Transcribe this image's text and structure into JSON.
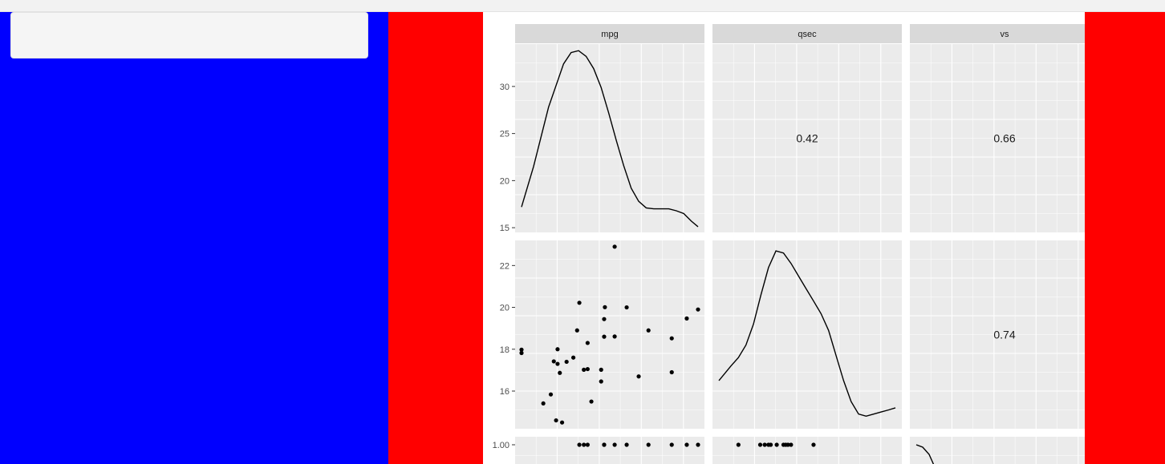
{
  "chart_data": {
    "type": "scatter",
    "kind": "pairs-matrix",
    "variables": [
      "mpg",
      "qsec",
      "vs"
    ],
    "panel_background": "#ebebeb",
    "strip_background": "#d9d9d9",
    "mark_color": "#000000",
    "grid": true,
    "y_ranges": {
      "mpg": [
        14.5,
        34.5
      ],
      "qsec": [
        14.2,
        23.2
      ]
    },
    "x_range": [
      10.4,
      33.9
    ],
    "y_ticks": {
      "mpg": [
        15,
        20,
        25,
        30
      ],
      "qsec": [
        16,
        18,
        20,
        22
      ],
      "vs": [
        1.0
      ]
    },
    "tick_labels": {
      "mpg": [
        "15",
        "20",
        "25",
        "30"
      ],
      "qsec": [
        "16",
        "18",
        "20",
        "22"
      ],
      "vs": [
        "1.00"
      ]
    },
    "correlations": [
      {
        "row": "mpg",
        "col": "qsec",
        "label": "0.42"
      },
      {
        "row": "mpg",
        "col": "vs",
        "label": "0.66"
      },
      {
        "row": "qsec",
        "col": "vs",
        "label": "0.74"
      }
    ],
    "density_mpg": {
      "x": [
        10.4,
        12,
        14,
        16,
        17,
        18,
        19,
        20,
        21,
        22,
        23,
        24,
        25,
        26,
        27,
        28,
        29,
        30,
        31,
        32,
        33,
        33.9
      ],
      "y": [
        17.2,
        21.5,
        27.8,
        32.4,
        33.6,
        33.8,
        33.2,
        31.9,
        29.9,
        27.2,
        24.3,
        21.6,
        19.2,
        17.8,
        17.1,
        17.0,
        17.0,
        17.0,
        16.8,
        16.5,
        15.7,
        15.1
      ]
    },
    "density_qsec": {
      "x": [
        10.4,
        12,
        13,
        14,
        15,
        16,
        17,
        18,
        19,
        20,
        21,
        22,
        23,
        24,
        25,
        26,
        27,
        28,
        29,
        30,
        31,
        32,
        33,
        33.9
      ],
      "y": [
        16.5,
        17.2,
        17.6,
        18.2,
        19.2,
        20.6,
        21.9,
        22.7,
        22.6,
        22.1,
        21.5,
        20.9,
        20.3,
        19.7,
        18.9,
        17.7,
        16.5,
        15.5,
        14.9,
        14.8,
        14.9,
        15.0,
        15.1,
        15.2
      ]
    },
    "scatter_mpg_qsec": [
      {
        "x": 21.0,
        "y": 16.46
      },
      {
        "x": 21.0,
        "y": 17.02
      },
      {
        "x": 22.8,
        "y": 18.61
      },
      {
        "x": 21.4,
        "y": 19.44
      },
      {
        "x": 18.7,
        "y": 17.02
      },
      {
        "x": 18.1,
        "y": 20.22
      },
      {
        "x": 14.3,
        "y": 15.84
      },
      {
        "x": 24.4,
        "y": 20.0
      },
      {
        "x": 22.8,
        "y": 22.9
      },
      {
        "x": 19.2,
        "y": 18.3
      },
      {
        "x": 17.8,
        "y": 18.9
      },
      {
        "x": 16.4,
        "y": 17.4
      },
      {
        "x": 17.3,
        "y": 17.6
      },
      {
        "x": 15.2,
        "y": 18.0
      },
      {
        "x": 10.4,
        "y": 17.98
      },
      {
        "x": 10.4,
        "y": 17.82
      },
      {
        "x": 14.7,
        "y": 17.42
      },
      {
        "x": 32.4,
        "y": 19.47
      },
      {
        "x": 30.4,
        "y": 18.52
      },
      {
        "x": 33.9,
        "y": 19.9
      },
      {
        "x": 21.5,
        "y": 20.01
      },
      {
        "x": 15.5,
        "y": 16.87
      },
      {
        "x": 15.2,
        "y": 17.3
      },
      {
        "x": 13.3,
        "y": 15.41
      },
      {
        "x": 19.2,
        "y": 17.05
      },
      {
        "x": 27.3,
        "y": 18.9
      },
      {
        "x": 26.0,
        "y": 16.7
      },
      {
        "x": 30.4,
        "y": 16.9
      },
      {
        "x": 15.8,
        "y": 14.5
      },
      {
        "x": 19.7,
        "y": 15.5
      },
      {
        "x": 15.0,
        "y": 14.6
      },
      {
        "x": 21.4,
        "y": 18.6
      }
    ],
    "vs_row_mpg_x": [
      18.1,
      18.7,
      19.2,
      21.4,
      21.4,
      22.8,
      24.4,
      27.3,
      30.4,
      32.4,
      33.9
    ],
    "vs_row_qsec_x": [
      13.0,
      15.9,
      16.5,
      17.0,
      17.3,
      18.1,
      19.0,
      19.3,
      19.6,
      20.0,
      23.0
    ]
  }
}
